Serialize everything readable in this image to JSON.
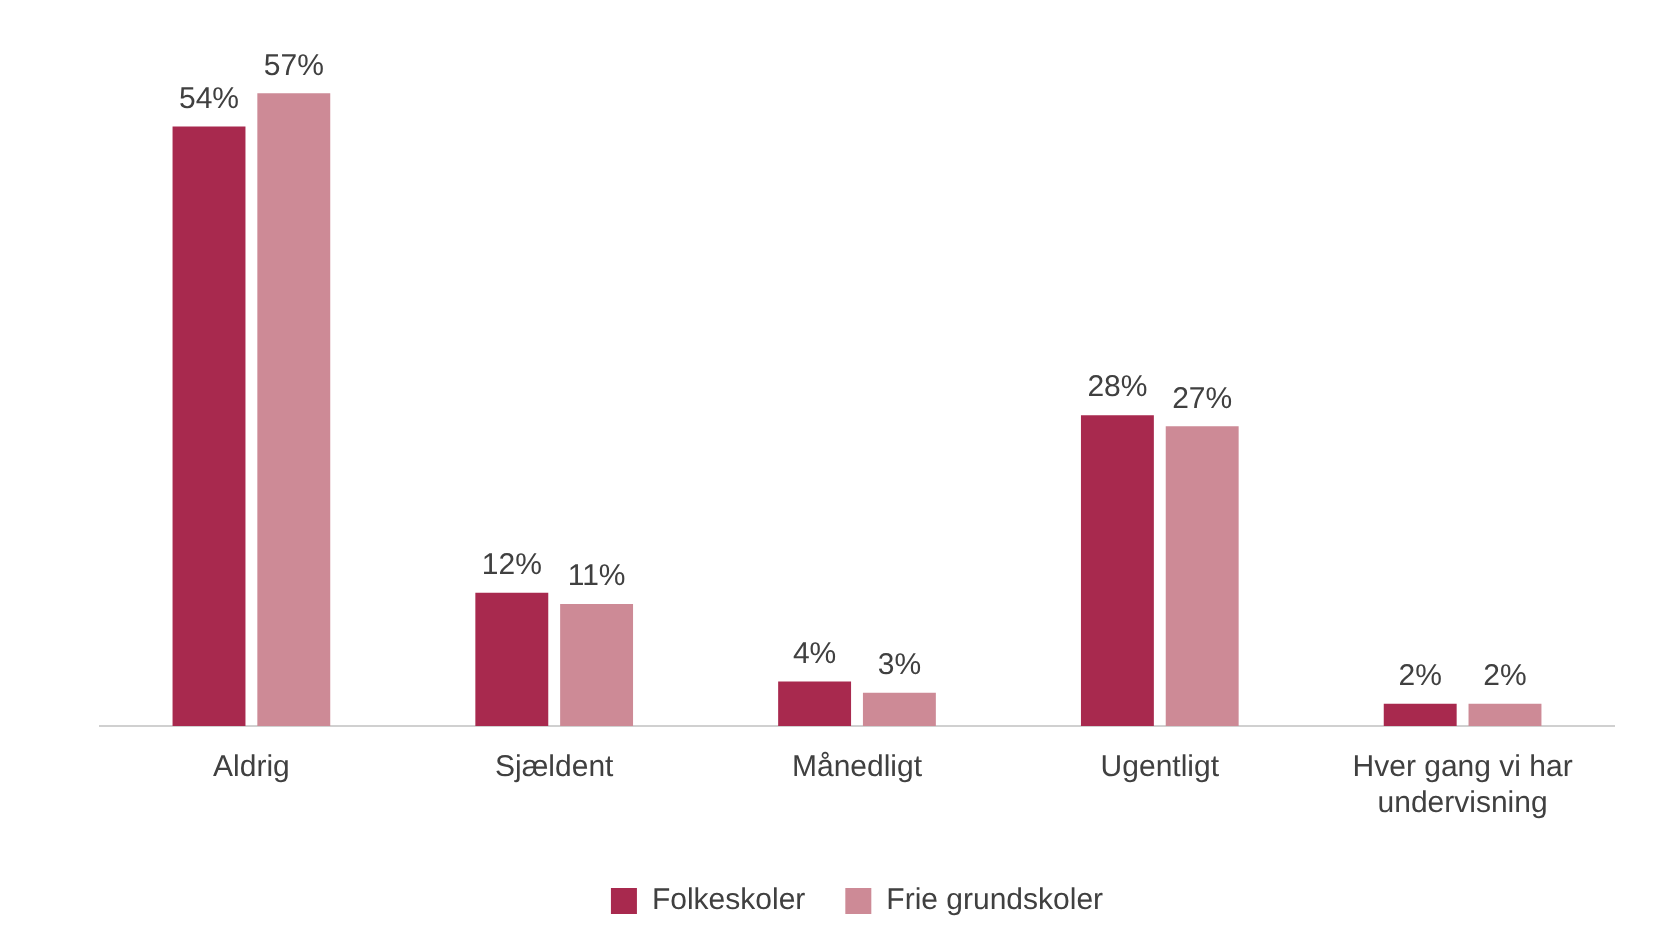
{
  "chart_data": {
    "type": "bar",
    "categories": [
      "Aldrig",
      "Sjældent",
      "Månedligt",
      "Ugentligt",
      "Hver gang vi har undervisning"
    ],
    "series": [
      {
        "name": "Folkeskoler",
        "color": "#a8294e",
        "values": [
          54,
          12,
          4,
          28,
          2
        ],
        "value_labels": [
          "54%",
          "12%",
          "4%",
          "28%",
          "2%"
        ]
      },
      {
        "name": "Frie grundskoler",
        "color": "#cd8a96",
        "values": [
          57,
          11,
          3,
          27,
          2
        ],
        "value_labels": [
          "57%",
          "11%",
          "3%",
          "27%",
          "2%"
        ]
      }
    ],
    "grid": false,
    "legend": "bottom"
  }
}
